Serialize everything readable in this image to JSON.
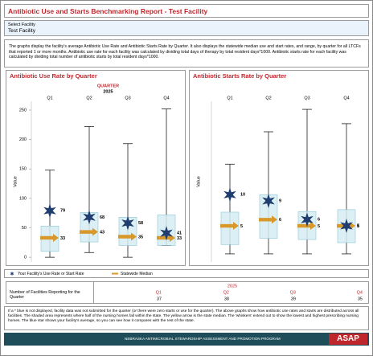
{
  "header": {
    "title": "Antibiotic Use and Starts Benchmarking Report - Test Facility"
  },
  "filter": {
    "label": "Select Facility",
    "value": "Test Facility"
  },
  "description": "The graphs display the facility's average Antibiotic Use Rate and Antibiotic Starts Rate by Quarter. It also displays the statewide median use and start rates, and range, by quarter for all LTCFs that reported 1 or more months. Antibiotic use rate for each facility was calculated by dividing total days of therapy by total resident days*1000. Antibiotic starts rate for each facility was calculated by dividing total number of antibiotic starts by total resident days*1000.",
  "legend": [
    {
      "name": "Your Facility's Use Rate or Start Rate",
      "color": "#1f3d6e"
    },
    {
      "name": "Statewide Median",
      "color": "#d9982a"
    }
  ],
  "chart_data": [
    {
      "type": "box",
      "title": "Antibiotic Use Rate by Quarter",
      "x_group_title": "QUARTER",
      "x_group": "2025",
      "categories": [
        "Q1",
        "Q2",
        "Q3",
        "Q4"
      ],
      "ylabel": "Value",
      "ylim": [
        -8,
        265
      ],
      "yticks": [
        0,
        50,
        100,
        150,
        200,
        250
      ],
      "boxes": [
        {
          "low": 0,
          "q1": 10,
          "q3": 53,
          "high": 148
        },
        {
          "low": 8,
          "q1": 26,
          "q3": 76,
          "high": 222
        },
        {
          "low": 0,
          "q1": 20,
          "q3": 68,
          "high": 193
        },
        {
          "low": 20,
          "q1": 20,
          "q3": 72,
          "high": 252
        }
      ],
      "box_color": "#d5ecf2",
      "series": [
        {
          "color": "#1f3d6e",
          "values": [
            79,
            68,
            58,
            41
          ]
        },
        {
          "color": "#d9982a",
          "values": [
            33,
            43,
            35,
            33
          ]
        }
      ]
    },
    {
      "type": "box",
      "title": "Antibiotic Starts Rate by Quarter",
      "categories": [
        "Q1",
        "Q2",
        "Q3",
        "Q4"
      ],
      "ylabel": "Value",
      "ylim": [
        -0.8,
        25
      ],
      "boxes": [
        {
          "low": 0.5,
          "q1": 2,
          "q3": 7.2,
          "high": 14.9
        },
        {
          "low": 0.5,
          "q1": 3,
          "q3": 10,
          "high": 20.1
        },
        {
          "low": 0.5,
          "q1": 2.8,
          "q3": 7.3,
          "high": 23.7
        },
        {
          "low": 0.5,
          "q1": 2.3,
          "q3": 7.6,
          "high": 21.4
        }
      ],
      "box_color": "#d5ecf2",
      "series": [
        {
          "color": "#1f3d6e",
          "values": [
            10,
            9,
            6,
            5
          ]
        },
        {
          "color": "#d9982a",
          "values": [
            5,
            6,
            5,
            5
          ]
        }
      ]
    }
  ],
  "table": {
    "label": "Number of Facilities Reporting for the Quarter",
    "year": "2025",
    "columns": [
      "Q1",
      "Q2",
      "Q3",
      "Q4"
    ],
    "values": [
      37,
      38,
      39,
      35
    ]
  },
  "footnote": "If a * blue is not displayed, facility data was not submitted for the quarter (or there were zero starts or use for the quarter). The above graphs show how antibiotic use rates and starts are distributed across all facilities. The shaded area represents where half of the nursing homes fall within the state. The yellow arrow is the state median. The 'whiskers' extend out to show the lowest and highest prescribing nursing homes. The blue star shows your facility's average, so you can see how it compares with the rest of the state.",
  "footer": {
    "program": "NEBRASKA ANTIMICROBIAL STEWARDSHIP ASSESSMENT AND PROMOTION PROGRAM",
    "logo": "ASAP"
  }
}
